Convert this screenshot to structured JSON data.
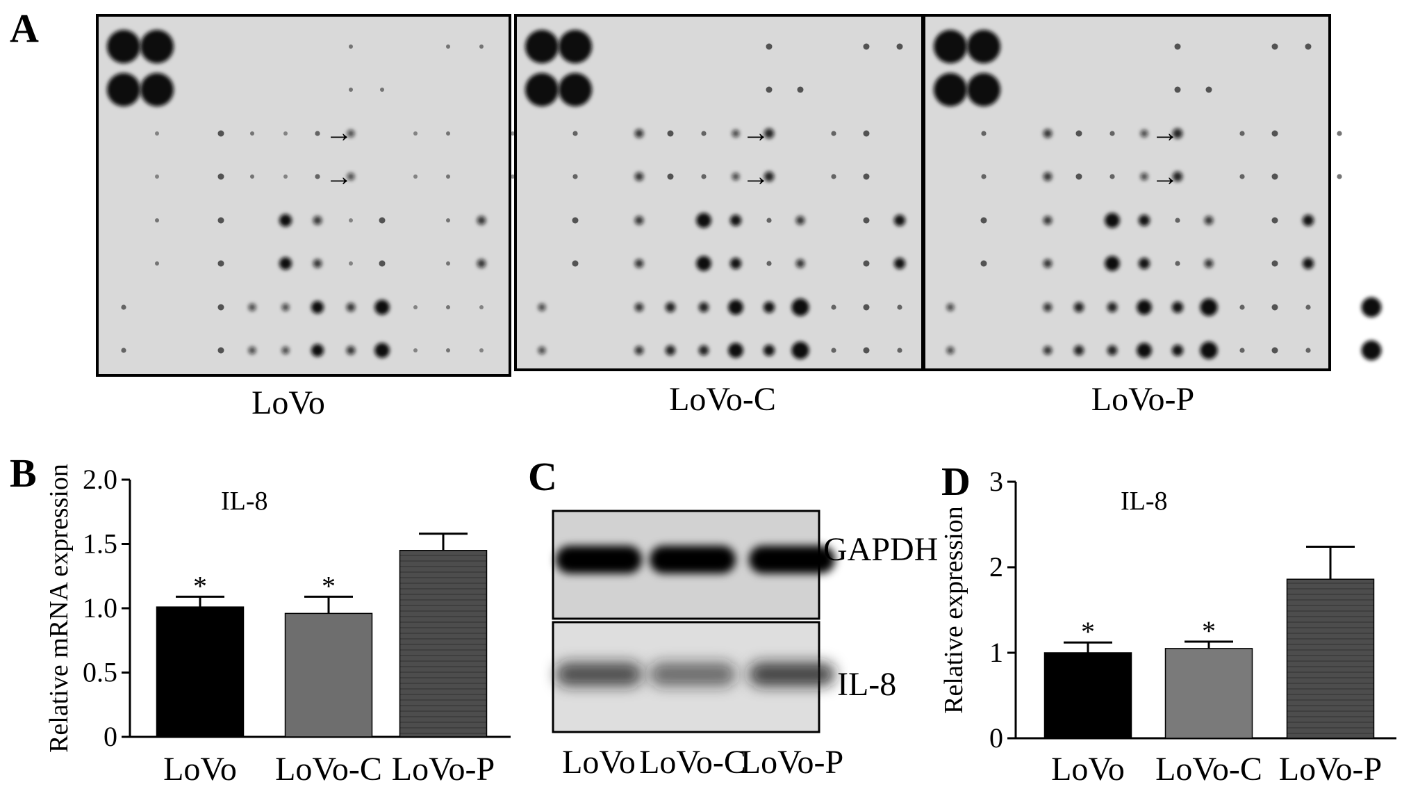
{
  "panel_a": {
    "letter": "A",
    "membranes": [
      {
        "name": "LoVo"
      },
      {
        "name": "LoVo-C"
      },
      {
        "name": "LoVo-P"
      }
    ],
    "arrow_glyph": "→"
  },
  "panel_c": {
    "letter": "C",
    "bands": [
      {
        "name": "GAPDH"
      },
      {
        "name": "IL-8"
      }
    ],
    "lanes": [
      "LoVo",
      "LoVo-C",
      "LoVo-P"
    ]
  },
  "chart_data": [
    {
      "panel": "B",
      "type": "bar",
      "title": "IL-8",
      "xlabel": "",
      "ylabel": "Relative mRNA expression",
      "categories": [
        "LoVo",
        "LoVo-C",
        "LoVo-P"
      ],
      "values": [
        1.01,
        0.96,
        1.45
      ],
      "errors": [
        0.08,
        0.13,
        0.13
      ],
      "significance": [
        "*",
        "*",
        ""
      ],
      "ylim": [
        0,
        2.0
      ],
      "yticks": [
        "0",
        "0.5",
        "1.0",
        "1.5",
        "2.0"
      ],
      "colors": [
        "#000000",
        "#6e6e6e",
        "#4a4a4a"
      ],
      "grid": false
    },
    {
      "panel": "D",
      "type": "bar",
      "title": "IL-8",
      "xlabel": "",
      "ylabel": "Relative expression",
      "categories": [
        "LoVo",
        "LoVo-C",
        "LoVo-P"
      ],
      "values": [
        1.0,
        1.05,
        1.86
      ],
      "errors": [
        0.12,
        0.08,
        0.38
      ],
      "significance": [
        "*",
        "*",
        ""
      ],
      "ylim": [
        0,
        3
      ],
      "yticks": [
        "0",
        "1",
        "2",
        "3"
      ],
      "colors": [
        "#000000",
        "#7a7a7a",
        "#4a4a4a"
      ],
      "grid": false
    }
  ]
}
